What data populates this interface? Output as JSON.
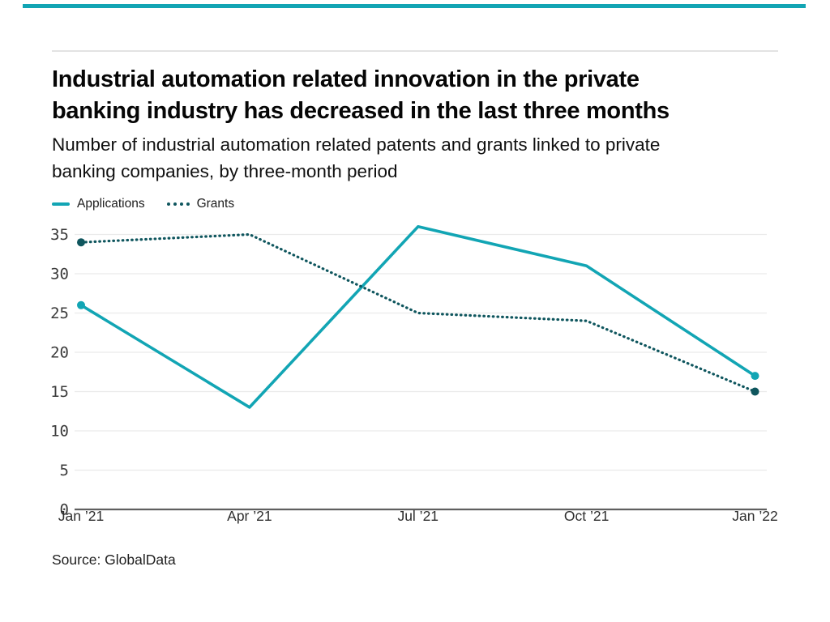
{
  "page": {
    "accent_bar_color": "#12a5b4",
    "divider_color": "#e3e3e3"
  },
  "header": {
    "title_lines": [
      "Industrial automation related innovation in the private",
      "banking industry has decreased in the last three months"
    ],
    "subtitle_lines": [
      "Number of industrial automation related patents and grants linked to private",
      "banking companies, by three-month period"
    ]
  },
  "legend": {
    "items": [
      {
        "label": "Applications",
        "swatch": "line",
        "color": "#12a5b4"
      },
      {
        "label": "Grants",
        "swatch": "dots",
        "color": "#0f565e"
      }
    ]
  },
  "source": "Source: GlobalData",
  "chart_data": {
    "type": "line",
    "title": "Industrial automation related innovation in the private banking industry has decreased in the last three months",
    "subtitle": "Number of industrial automation related patents and grants linked to private banking companies, by three-month period",
    "categories": [
      "Jan ’21",
      "Apr ’21",
      "Jul ’21",
      "Oct ’21",
      "Jan ’22"
    ],
    "series": [
      {
        "name": "Applications",
        "values": [
          26,
          13,
          36,
          31,
          17
        ],
        "color": "#12a5b4",
        "dash": "solid",
        "endpoint_markers": true
      },
      {
        "name": "Grants",
        "values": [
          34,
          35,
          25,
          24,
          15
        ],
        "color": "#0f565e",
        "dash": "dotted",
        "endpoint_markers": true
      }
    ],
    "xlabel": "",
    "ylabel": "",
    "yticks": [
      0,
      5,
      10,
      15,
      20,
      25,
      30,
      35
    ],
    "ylim": [
      0,
      37
    ],
    "grid": "horizontal",
    "legend_position": "top-left",
    "source": "Source: GlobalData"
  }
}
